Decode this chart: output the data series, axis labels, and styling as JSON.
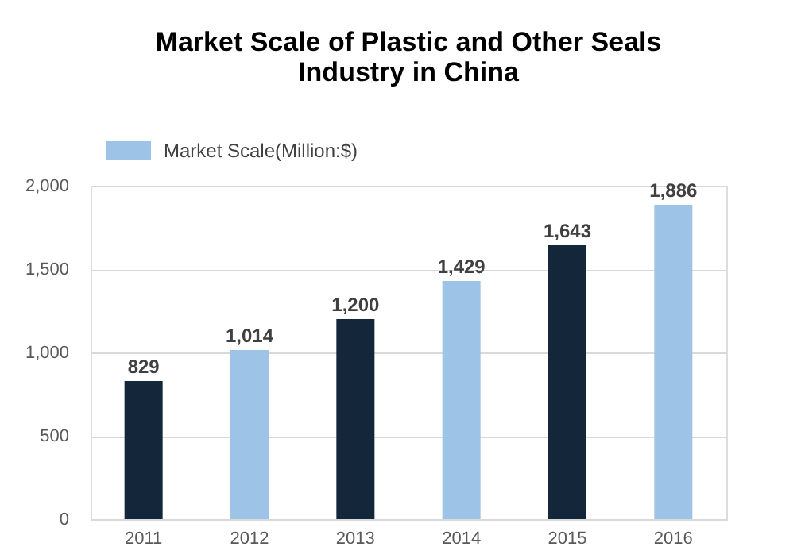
{
  "chart_data": {
    "type": "bar",
    "title": [
      "Market Scale of Plastic and Other Seals",
      "Industry in China"
    ],
    "categories": [
      "2011",
      "2012",
      "2013",
      "2014",
      "2015",
      "2016"
    ],
    "series": [
      {
        "name": "Market Scale(Million:$)",
        "color": "#9dc3e6",
        "colors": [
          "#14263a",
          "#9dc3e6",
          "#14263a",
          "#9dc3e6",
          "#14263a",
          "#9dc3e6"
        ],
        "values": [
          829,
          1014,
          1200,
          1429,
          1643,
          1886
        ],
        "value_labels": [
          "829",
          "1,014",
          "1,200",
          "1,429",
          "1,643",
          "1,886"
        ]
      }
    ],
    "ylim": [
      0,
      2000
    ],
    "yticks": [
      0,
      500,
      {
        "value": 1000,
        "label": "1,000"
      },
      {
        "value": 1500,
        "label": "1,500"
      },
      {
        "value": 2000,
        "label": "2,000"
      }
    ],
    "grid": "y",
    "legend": "top left"
  }
}
